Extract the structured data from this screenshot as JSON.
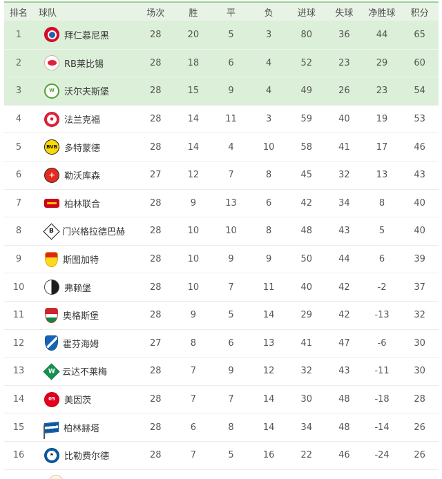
{
  "table": {
    "headers": {
      "rank": "排名",
      "team": "球队",
      "played": "场次",
      "win": "胜",
      "draw": "平",
      "loss": "负",
      "goals_for": "进球",
      "goals_against": "失球",
      "goal_diff": "净胜球",
      "points": "积分"
    },
    "highlight_top_n": 3,
    "colors": {
      "header_bg": "#e7f3e4",
      "highlight_row_bg": "#dcefd8",
      "row_bg": "#ffffff",
      "top_border": "#9ccf97",
      "divider": "#ececec",
      "header_text": "#4f4f4f",
      "cell_text": "#555555",
      "team_text": "#383838"
    },
    "teams": [
      {
        "rank": 1,
        "name": "拜仁慕尼黑",
        "played": 28,
        "win": 20,
        "draw": 5,
        "loss": 3,
        "goals_for": 80,
        "goals_against": 36,
        "goal_diff": 44,
        "points": 65,
        "logo": {
          "icon": "bayern-munich-crest-icon",
          "shape": "circle",
          "bg": "#dc0928",
          "border": "#c00822",
          "inner": "#2a5fa6",
          "text": "",
          "text_color": "#ffffff"
        }
      },
      {
        "rank": 2,
        "name": "RB莱比锡",
        "played": 28,
        "win": 18,
        "draw": 6,
        "loss": 4,
        "goals_for": 52,
        "goals_against": 23,
        "goal_diff": 29,
        "points": 60,
        "logo": {
          "icon": "rb-leipzig-crest-icon",
          "shape": "bull",
          "bg": "#ffffff",
          "border": "#dba8ae",
          "inner": "#e0213b",
          "text": "",
          "text_color": "#ffffff"
        }
      },
      {
        "rank": 3,
        "name": "沃尔夫斯堡",
        "played": 28,
        "win": 15,
        "draw": 9,
        "loss": 4,
        "goals_for": 49,
        "goals_against": 26,
        "goal_diff": 23,
        "points": 54,
        "logo": {
          "icon": "wolfsburg-crest-icon",
          "shape": "ring",
          "bg": "#ffffff",
          "border": "#4da32f",
          "inner": "",
          "text": "W",
          "text_color": "#4da32f"
        }
      },
      {
        "rank": 4,
        "name": "法兰克福",
        "played": 28,
        "win": 14,
        "draw": 11,
        "loss": 3,
        "goals_for": 59,
        "goals_against": 40,
        "goal_diff": 19,
        "points": 53,
        "logo": {
          "icon": "eintracht-frankfurt-crest-icon",
          "shape": "eagle",
          "bg": "#e2203a",
          "border": "#c81b31",
          "inner": "#ffffff",
          "text": "●",
          "text_color": "#e2203a"
        }
      },
      {
        "rank": 5,
        "name": "多特蒙德",
        "played": 28,
        "win": 14,
        "draw": 4,
        "loss": 10,
        "goals_for": 58,
        "goals_against": 41,
        "goal_diff": 17,
        "points": 46,
        "logo": {
          "icon": "dortmund-crest-icon",
          "shape": "circle",
          "bg": "#ffd900",
          "border": "#1a1a1a",
          "inner": "",
          "text": "BVB",
          "text_color": "#111111"
        }
      },
      {
        "rank": 6,
        "name": "勒沃库森",
        "played": 27,
        "win": 12,
        "draw": 7,
        "loss": 8,
        "goals_for": 45,
        "goals_against": 32,
        "goal_diff": 13,
        "points": 43,
        "logo": {
          "icon": "leverkusen-crest-icon",
          "shape": "circle",
          "bg": "#e32b1e",
          "border": "#2b2b2b",
          "inner": "",
          "text": "+",
          "text_color": "#ffffff"
        }
      },
      {
        "rank": 7,
        "name": "柏林联合",
        "played": 28,
        "win": 9,
        "draw": 13,
        "loss": 6,
        "goals_for": 42,
        "goals_against": 34,
        "goal_diff": 8,
        "points": 40,
        "logo": {
          "icon": "union-berlin-crest-icon",
          "shape": "banner",
          "bg": "#d4011d",
          "border": "#b50017",
          "inner": "#f6c500",
          "text": "",
          "text_color": "#f6c500"
        }
      },
      {
        "rank": 8,
        "name": "门兴格拉德巴赫",
        "played": 28,
        "win": 10,
        "draw": 10,
        "loss": 8,
        "goals_for": 48,
        "goals_against": 43,
        "goal_diff": 5,
        "points": 40,
        "logo": {
          "icon": "gladbach-crest-icon",
          "shape": "diamond",
          "bg": "#ffffff",
          "border": "#111111",
          "inner": "",
          "text": "B",
          "text_color": "#111111"
        }
      },
      {
        "rank": 9,
        "name": "斯图加特",
        "played": 28,
        "win": 10,
        "draw": 9,
        "loss": 9,
        "goals_for": 50,
        "goals_against": 44,
        "goal_diff": 6,
        "points": 39,
        "logo": {
          "icon": "stuttgart-crest-icon",
          "shape": "shield",
          "bg": "linear-gradient(180deg,#e32219 36%,#ffd91c 36%)",
          "border": "#d3a90e",
          "inner": "",
          "text": "",
          "text_color": "#e32219"
        }
      },
      {
        "rank": 10,
        "name": "弗赖堡",
        "played": 28,
        "win": 10,
        "draw": 7,
        "loss": 11,
        "goals_for": 40,
        "goals_against": 42,
        "goal_diff": -2,
        "points": 37,
        "logo": {
          "icon": "freiburg-crest-icon",
          "shape": "circle",
          "bg": "linear-gradient(90deg,#ffffff 48%,#1c1c1c 48%)",
          "border": "#444444",
          "inner": "",
          "text": "",
          "text_color": "#ffffff"
        }
      },
      {
        "rank": 11,
        "name": "奥格斯堡",
        "played": 28,
        "win": 9,
        "draw": 5,
        "loss": 14,
        "goals_for": 29,
        "goals_against": 42,
        "goal_diff": -13,
        "points": 32,
        "logo": {
          "icon": "augsburg-crest-icon",
          "shape": "shield",
          "bg": "linear-gradient(180deg,#cf2330 40%,#ffffff 40%,#ffffff 64%,#0a8a44 64%)",
          "border": "#c0392b",
          "inner": "",
          "text": "",
          "text_color": "#ffffff"
        }
      },
      {
        "rank": 12,
        "name": "霍芬海姆",
        "played": 27,
        "win": 8,
        "draw": 6,
        "loss": 13,
        "goals_for": 41,
        "goals_against": 47,
        "goal_diff": -6,
        "points": 30,
        "logo": {
          "icon": "hoffenheim-crest-icon",
          "shape": "shield",
          "bg": "linear-gradient(135deg,#1565b5 44%,#ffffff 44%,#ffffff 58%,#1565b5 58%)",
          "border": "#0f4f92",
          "inner": "",
          "text": "",
          "text_color": "#ffffff"
        }
      },
      {
        "rank": 13,
        "name": "云达不莱梅",
        "played": 28,
        "win": 7,
        "draw": 9,
        "loss": 12,
        "goals_for": 32,
        "goals_against": 43,
        "goal_diff": -11,
        "points": 30,
        "logo": {
          "icon": "werder-bremen-crest-icon",
          "shape": "diamond",
          "bg": "#169152",
          "border": "#0e7a42",
          "inner": "",
          "text": "W",
          "text_color": "#ffffff"
        }
      },
      {
        "rank": 14,
        "name": "美因茨",
        "played": 28,
        "win": 7,
        "draw": 7,
        "loss": 14,
        "goals_for": 30,
        "goals_against": 48,
        "goal_diff": -18,
        "points": 28,
        "logo": {
          "icon": "mainz-crest-icon",
          "shape": "circle",
          "bg": "#e2001a",
          "border": "#c40016",
          "inner": "",
          "text": "05",
          "text_color": "#ffffff"
        }
      },
      {
        "rank": 15,
        "name": "柏林赫塔",
        "played": 28,
        "win": 6,
        "draw": 8,
        "loss": 14,
        "goals_for": 34,
        "goals_against": 48,
        "goal_diff": -14,
        "points": 26,
        "logo": {
          "icon": "hertha-berlin-flag-icon",
          "shape": "flag",
          "bg": "linear-gradient(180deg,#0a57a4 34%,#ffffff 34%,#ffffff 62%,#0a57a4 62%)",
          "border": "#0a57a4",
          "inner": "",
          "text": "",
          "text_color": "#ffffff"
        }
      },
      {
        "rank": 16,
        "name": "比勒费尔德",
        "played": 28,
        "win": 7,
        "draw": 5,
        "loss": 16,
        "goals_for": 22,
        "goals_against": 46,
        "goal_diff": -24,
        "points": 26,
        "logo": {
          "icon": "bielefeld-crest-icon",
          "shape": "eagle",
          "bg": "#0a5aa0",
          "border": "#084a85",
          "inner": "#ffffff",
          "text": "⚑",
          "text_color": "#111111"
        }
      }
    ]
  }
}
